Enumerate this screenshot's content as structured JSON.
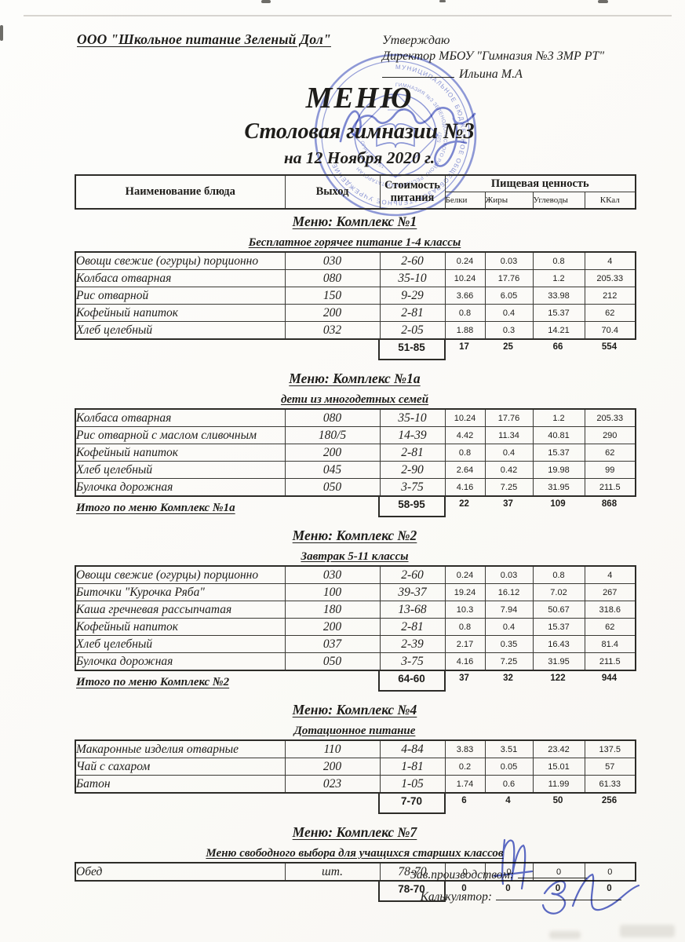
{
  "colors": {
    "ink": "#1e1d1a",
    "stamp_blue": "#4a5bc4",
    "paper": "#fcfbf8"
  },
  "page": {
    "company": "ООО \"Школьное питание Зеленый Дол\"",
    "approve": "Утверждаю",
    "director": "Директор МБОУ \"Гимназия №3 ЗМР РТ\"",
    "director_name": "Ильина М.А",
    "title": "МЕНЮ",
    "subtitle": "Столовая гимназии №3",
    "date_line": "на 12 Ноября 2020 г."
  },
  "table_header": {
    "dish": "Наименование блюда",
    "out": "Выход",
    "cost_line1": "Стоимость",
    "cost_line2": "питания",
    "nutrition": "Пищевая ценность",
    "cols": [
      "Белки",
      "Жиры",
      "Углеводы",
      "ККал"
    ]
  },
  "sections": [
    {
      "title": "Меню: Комплекс №1",
      "subtitle": "Бесплатное горячее питание  1-4 классы",
      "rows": [
        [
          "Овощи свежие (огурцы) порционно",
          "030",
          "2-60",
          "0.24",
          "0.03",
          "0.8",
          "4"
        ],
        [
          "Колбаса отварная",
          "080",
          "35-10",
          "10.24",
          "17.76",
          "1.2",
          "205.33"
        ],
        [
          "Рис отварной",
          "150",
          "9-29",
          "3.66",
          "6.05",
          "33.98",
          "212"
        ],
        [
          "Кофейный напиток",
          "200",
          "2-81",
          "0.8",
          "0.4",
          "15.37",
          "62"
        ],
        [
          "Хлеб  целебный",
          "032",
          "2-05",
          "1.88",
          "0.3",
          "14.21",
          "70.4"
        ]
      ],
      "total_label": "",
      "total_cost": "51-85",
      "totals": [
        "17",
        "25",
        "66",
        "554"
      ]
    },
    {
      "title": "Меню: Комплекс №1а",
      "subtitle": "дети из многодетных семей",
      "rows": [
        [
          "Колбаса отварная",
          "080",
          "35-10",
          "10.24",
          "17.76",
          "1.2",
          "205.33"
        ],
        [
          "Рис отварной с маслом сливочным",
          "180/5",
          "14-39",
          "4.42",
          "11.34",
          "40.81",
          "290"
        ],
        [
          "Кофейный напиток",
          "200",
          "2-81",
          "0.8",
          "0.4",
          "15.37",
          "62"
        ],
        [
          "Хлеб  целебный",
          "045",
          "2-90",
          "2.64",
          "0.42",
          "19.98",
          "99"
        ],
        [
          "Булочка дорожная",
          "050",
          "3-75",
          "4.16",
          "7.25",
          "31.95",
          "211.5"
        ]
      ],
      "total_label": "Итого по меню Комплекс №1а",
      "total_cost": "58-95",
      "totals": [
        "22",
        "37",
        "109",
        "868"
      ]
    },
    {
      "title": "Меню: Комплекс №2",
      "subtitle": "Завтрак 5-11 классы",
      "rows": [
        [
          "Овощи свежие (огурцы) порционно",
          "030",
          "2-60",
          "0.24",
          "0.03",
          "0.8",
          "4"
        ],
        [
          "Биточки \"Курочка Ряба\"",
          "100",
          "39-37",
          "19.24",
          "16.12",
          "7.02",
          "267"
        ],
        [
          "Каша гречневая рассыпчатая",
          "180",
          "13-68",
          "10.3",
          "7.94",
          "50.67",
          "318.6"
        ],
        [
          "Кофейный напиток",
          "200",
          "2-81",
          "0.8",
          "0.4",
          "15.37",
          "62"
        ],
        [
          "Хлеб  целебный",
          "037",
          "2-39",
          "2.17",
          "0.35",
          "16.43",
          "81.4"
        ],
        [
          "Булочка дорожная",
          "050",
          "3-75",
          "4.16",
          "7.25",
          "31.95",
          "211.5"
        ]
      ],
      "total_label": "Итого по меню Комплекс №2",
      "total_cost": "64-60",
      "totals": [
        "37",
        "32",
        "122",
        "944"
      ]
    },
    {
      "title": "Меню: Комплекс №4",
      "subtitle": "Дотационное питание",
      "rows": [
        [
          "Макаронные изделия отварные",
          "110",
          "4-84",
          "3.83",
          "3.51",
          "23.42",
          "137.5"
        ],
        [
          "Чай с сахаром",
          "200",
          "1-81",
          "0.2",
          "0.05",
          "15.01",
          "57"
        ],
        [
          "Батон",
          "023",
          "1-05",
          "1.74",
          "0.6",
          "11.99",
          "61.33"
        ]
      ],
      "total_label": "",
      "total_cost": "7-70",
      "totals": [
        "6",
        "4",
        "50",
        "256"
      ]
    },
    {
      "title": "Меню: Комплекс №7",
      "subtitle": "Меню свободного выбора для учащихся старших классов",
      "rows": [
        [
          "Обед",
          "шт.",
          "78-70",
          "0",
          "0",
          "0",
          "0"
        ]
      ],
      "total_label": "",
      "total_cost": "78-70",
      "totals": [
        "0",
        "0",
        "0",
        "0"
      ]
    }
  ],
  "footer": {
    "manager_label": "Зав.производством:",
    "calculator_label": "Калькулятор:"
  },
  "stamp": {
    "ring_outer": "МУНИЦИПАЛЬНОЕ БЮДЖЕТНОЕ ОБЩЕОБРАЗОВАТЕЛЬНОЕ УЧРЕЖДЕНИЕ",
    "ring_inner": "ГИМНАЗИЯ №3 ЗЕЛЕНОДОЛЬСКОГО РАЙОНА РЕСПУБЛИКИ ТАТАРСТАН",
    "ogrn": "ОГРН 8004751",
    "code": "5257"
  }
}
